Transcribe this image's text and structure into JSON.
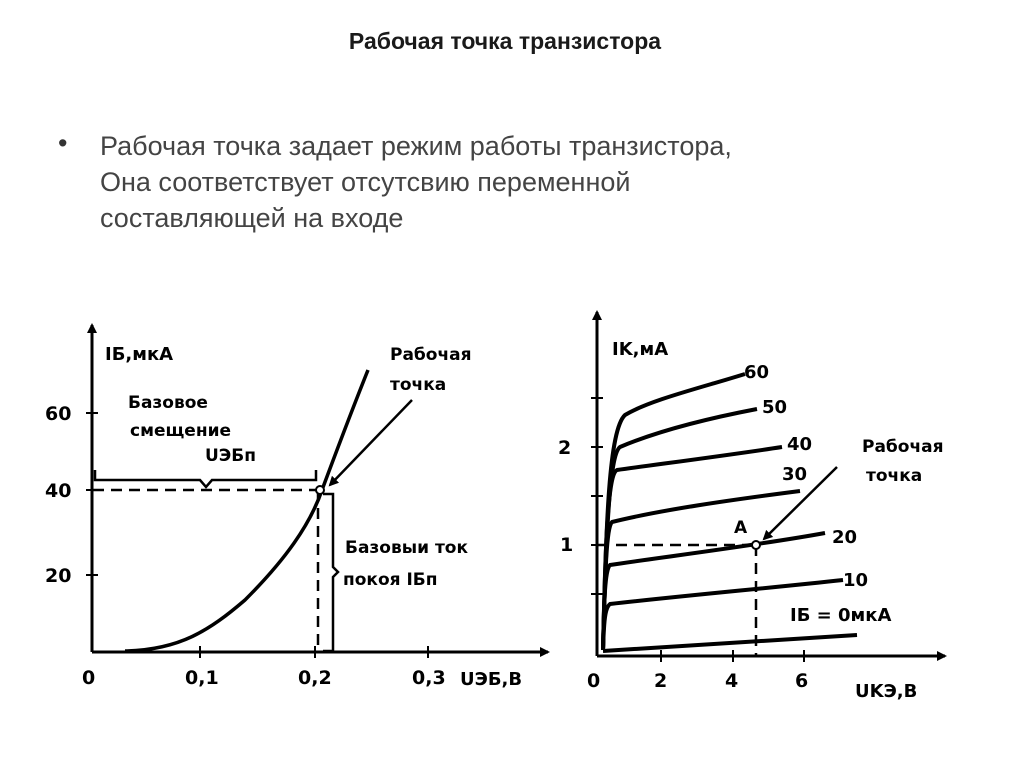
{
  "slide": {
    "title": "Рабочая точка транзистора",
    "bullet_symbol": "•",
    "bullet_lines": [
      "Рабочая точка  задает режим работы  транзистора,",
      "Она соответствует отсутсвию переменной",
      "составляющей на входе"
    ]
  },
  "left_plot": {
    "ylabel": "IБ,мкА",
    "xlabel": "UЭБ,В",
    "origin_label": "0",
    "y_ticks": [
      "60",
      "40",
      "20"
    ],
    "x_ticks": [
      "0,1",
      "0,2",
      "0,3"
    ],
    "bias_label_lines": [
      "Базовое",
      "смещение"
    ],
    "bias_voltage_label": "UЭБп",
    "current_label_lines": [
      "Базовыи ток",
      "покоя IБп"
    ],
    "operating_point_label_lines": [
      "Рабочая",
      "точка"
    ],
    "operating_point": {
      "x": 0.21,
      "y": 40
    }
  },
  "right_plot": {
    "ylabel": "IK,мА",
    "xlabel": "UKЭ,В",
    "origin_label": "0",
    "y_ticks": [
      "2",
      "1"
    ],
    "x_ticks": [
      "2",
      "4",
      "6"
    ],
    "curve_labels": [
      "60",
      "50",
      "40",
      "30",
      "20",
      "10",
      "IБ = 0мкА"
    ],
    "point_label": "A",
    "operating_point_label_lines": [
      "Рабочая",
      "точка"
    ],
    "operating_point": {
      "x": 4.6,
      "y": 1.0
    }
  }
}
